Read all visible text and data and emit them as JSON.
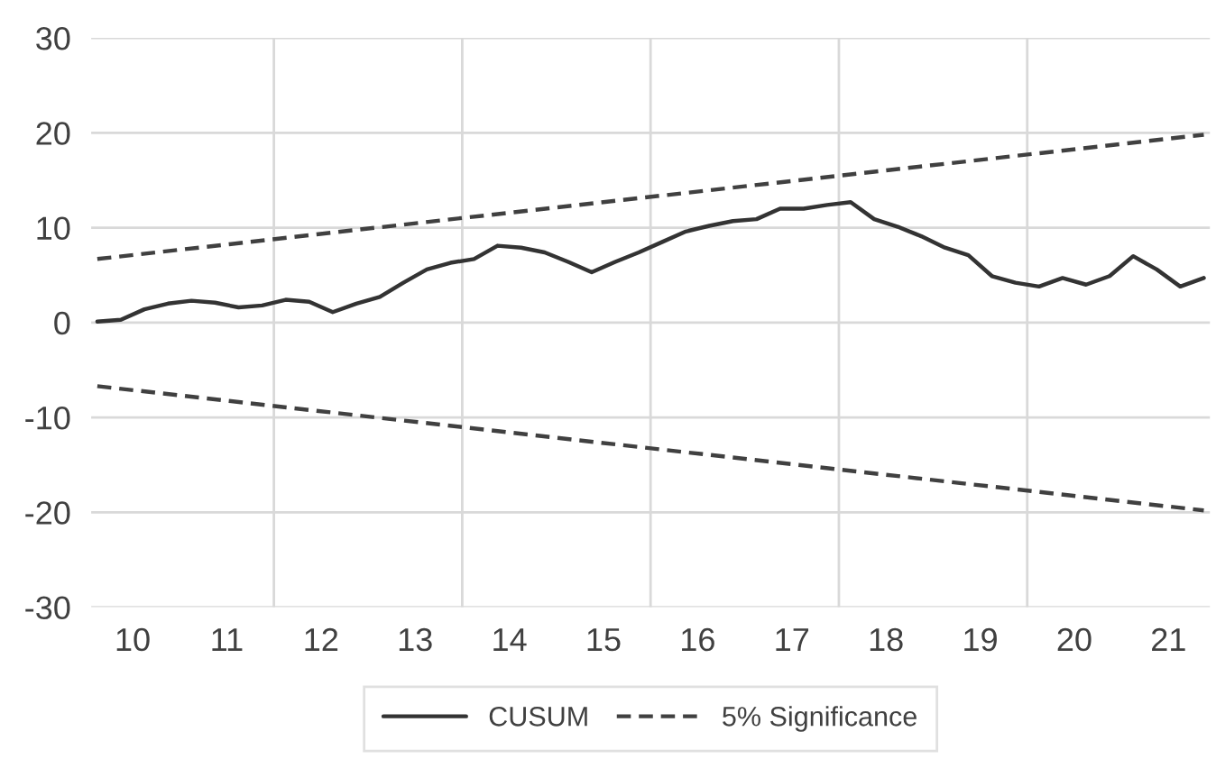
{
  "chart_data": {
    "type": "line",
    "xlim": [
      10.06,
      21.94
    ],
    "ylim": [
      -30,
      30
    ],
    "yticks": [
      -30,
      -20,
      -10,
      0,
      10,
      20,
      30
    ],
    "xticks": [
      {
        "value": 10.5,
        "label": "10"
      },
      {
        "value": 11.5,
        "label": "11"
      },
      {
        "value": 12,
        "label": null
      },
      {
        "value": 12.5,
        "label": "12"
      },
      {
        "value": 13.5,
        "label": "13"
      },
      {
        "value": 14,
        "label": null
      },
      {
        "value": 14.5,
        "label": "14"
      },
      {
        "value": 15.5,
        "label": "15"
      },
      {
        "value": 16,
        "label": null
      },
      {
        "value": 16.5,
        "label": "16"
      },
      {
        "value": 17.5,
        "label": "17"
      },
      {
        "value": 18,
        "label": null
      },
      {
        "value": 18.5,
        "label": "18"
      },
      {
        "value": 19.5,
        "label": "19"
      },
      {
        "value": 20,
        "label": null
      },
      {
        "value": 20.5,
        "label": "20"
      },
      {
        "value": 21.5,
        "label": "21"
      }
    ],
    "grid": true,
    "legend": "bottom",
    "marker": "none",
    "series": [
      {
        "name": "CUSUM",
        "color": "#333333",
        "line_style": "solid",
        "x": [
          10.125,
          10.375,
          10.625,
          10.875,
          11.125,
          11.375,
          11.625,
          11.875,
          12.125,
          12.375,
          12.625,
          12.875,
          13.125,
          13.375,
          13.625,
          13.875,
          14.125,
          14.375,
          14.625,
          14.875,
          15.125,
          15.375,
          15.625,
          15.875,
          16.125,
          16.375,
          16.625,
          16.875,
          17.125,
          17.375,
          17.625,
          17.875,
          18.125,
          18.375,
          18.625,
          18.875,
          19.125,
          19.375,
          19.625,
          19.875,
          20.125,
          20.375,
          20.625,
          20.875,
          21.125,
          21.375,
          21.625,
          21.875
        ],
        "values": [
          0.1,
          0.3,
          1.4,
          2.0,
          2.3,
          2.1,
          1.6,
          1.8,
          2.4,
          2.2,
          1.1,
          2.0,
          2.7,
          4.2,
          5.6,
          6.3,
          6.7,
          8.1,
          7.9,
          7.4,
          6.4,
          5.3,
          6.4,
          7.4,
          8.5,
          9.6,
          10.2,
          10.7,
          10.9,
          12.0,
          12.0,
          12.4,
          12.7,
          10.9,
          10.1,
          9.1,
          7.9,
          7.1,
          4.9,
          4.2,
          3.8,
          4.7,
          4.0,
          4.9,
          7.0,
          5.6,
          3.8,
          4.7
        ]
      },
      {
        "name": "5% Significance",
        "color": "#404040",
        "line_style": "dashed",
        "x": [
          10.125,
          21.875
        ],
        "values": [
          6.7,
          19.8
        ]
      },
      {
        "color": "#404040",
        "line_style": "dashed",
        "x": [
          10.125,
          21.875
        ],
        "values": [
          -6.7,
          -19.8
        ]
      }
    ]
  }
}
